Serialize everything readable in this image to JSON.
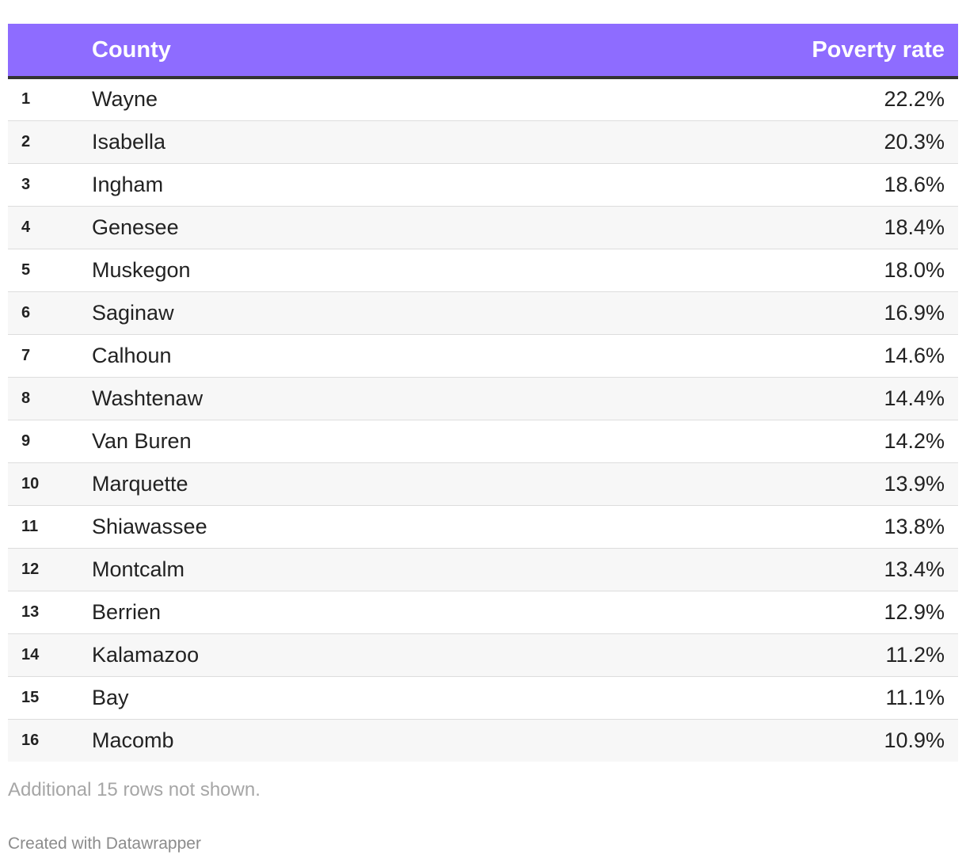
{
  "colors": {
    "header_bg": "#8e6cff",
    "header_text": "#ffffff",
    "header_rule": "#333333",
    "row_alt_bg": "#f7f7f7",
    "footer_text": "#a6a6a6"
  },
  "chart_data": {
    "type": "table",
    "columns": [
      "",
      "County",
      "Poverty rate"
    ],
    "rows": [
      {
        "rank": "1",
        "county": "Wayne",
        "rate": "22.2%"
      },
      {
        "rank": "2",
        "county": "Isabella",
        "rate": "20.3%"
      },
      {
        "rank": "3",
        "county": "Ingham",
        "rate": "18.6%"
      },
      {
        "rank": "4",
        "county": "Genesee",
        "rate": "18.4%"
      },
      {
        "rank": "5",
        "county": "Muskegon",
        "rate": "18.0%"
      },
      {
        "rank": "6",
        "county": "Saginaw",
        "rate": "16.9%"
      },
      {
        "rank": "7",
        "county": "Calhoun",
        "rate": "14.6%"
      },
      {
        "rank": "8",
        "county": "Washtenaw",
        "rate": "14.4%"
      },
      {
        "rank": "9",
        "county": "Van Buren",
        "rate": "14.2%"
      },
      {
        "rank": "10",
        "county": "Marquette",
        "rate": "13.9%"
      },
      {
        "rank": "11",
        "county": "Shiawassee",
        "rate": "13.8%"
      },
      {
        "rank": "12",
        "county": "Montcalm",
        "rate": "13.4%"
      },
      {
        "rank": "13",
        "county": "Berrien",
        "rate": "12.9%"
      },
      {
        "rank": "14",
        "county": "Kalamazoo",
        "rate": "11.2%"
      },
      {
        "rank": "15",
        "county": "Bay",
        "rate": "11.1%"
      },
      {
        "rank": "16",
        "county": "Macomb",
        "rate": "10.9%"
      }
    ],
    "note": "Additional 15 rows not shown.",
    "credit": "Created with Datawrapper"
  }
}
